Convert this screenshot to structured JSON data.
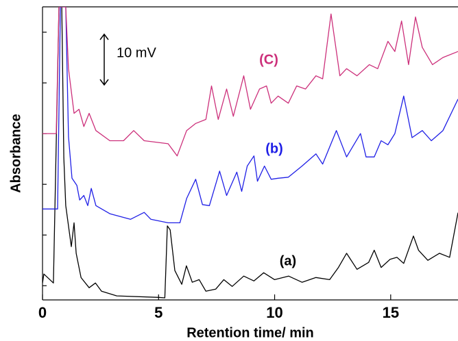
{
  "chart_data": {
    "type": "line",
    "x_label": "Retention time/ min",
    "y_label": "Absorbance",
    "annotation": "10 mV",
    "xlim": [
      0,
      17.9
    ],
    "ylim": [
      -1.4,
      27.5
    ],
    "xticks": [
      0,
      5,
      10,
      15
    ],
    "yticks": [
      0,
      5,
      10,
      15,
      20,
      25
    ],
    "series": [
      {
        "name": "(a)",
        "color": "#000000",
        "x": [
          0,
          0.06,
          0.47,
          0.71,
          0.83,
          0.92,
          1.0,
          1.12,
          1.24,
          1.36,
          1.45,
          1.66,
          2.01,
          2.28,
          2.54,
          3.2,
          5.0,
          5.27,
          5.38,
          5.5,
          5.7,
          6.0,
          6.2,
          6.45,
          6.75,
          7.04,
          7.46,
          7.81,
          8.17,
          8.67,
          9.11,
          9.53,
          10.0,
          10.6,
          11.18,
          11.78,
          12.37,
          12.75,
          13.1,
          13.55,
          14.05,
          14.29,
          14.59,
          14.97,
          15.27,
          15.56,
          15.98,
          16.2,
          16.6,
          17.1,
          17.54,
          17.9
        ],
        "values": [
          0.27,
          1.15,
          0.27,
          27.5,
          27.5,
          12.6,
          7.9,
          5.9,
          3.85,
          6.2,
          3.2,
          0.8,
          -0.2,
          0.27,
          -0.54,
          -1.0,
          -1.15,
          -1.2,
          5.9,
          5.5,
          1.5,
          0.14,
          1.96,
          0.34,
          0.6,
          -0.54,
          -0.34,
          0.6,
          -0.07,
          0.95,
          0.47,
          1.28,
          0.6,
          0.95,
          0.34,
          0.81,
          0.6,
          1.8,
          3.2,
          1.62,
          2.3,
          3.5,
          1.8,
          2.6,
          2.8,
          2.2,
          4.9,
          3.5,
          2.5,
          3.2,
          2.8,
          7.2
        ]
      },
      {
        "name": "(b)",
        "color": "#1f1fe6",
        "x": [
          0,
          0.65,
          0.77,
          1.0,
          1.12,
          1.27,
          1.48,
          1.6,
          1.78,
          1.95,
          2.1,
          2.3,
          2.9,
          3.79,
          4.38,
          4.67,
          5.41,
          5.92,
          6.21,
          6.6,
          6.89,
          7.19,
          7.63,
          7.93,
          8.37,
          8.58,
          8.82,
          9.11,
          9.26,
          9.56,
          9.85,
          10.15,
          10.59,
          11.18,
          11.78,
          12.07,
          12.66,
          13.1,
          13.7,
          13.94,
          14.29,
          14.59,
          14.88,
          15.18,
          15.56,
          15.92,
          16.36,
          16.75,
          17.25,
          17.9
        ],
        "values": [
          7.57,
          7.57,
          27.5,
          27.5,
          14.7,
          10.6,
          9.9,
          8.45,
          8.9,
          7.9,
          9.6,
          7.9,
          7.1,
          6.55,
          7.23,
          6.55,
          6.2,
          6.2,
          8.6,
          10.5,
          8.0,
          7.9,
          11.3,
          8.9,
          11.2,
          9.3,
          11.8,
          12.8,
          10.3,
          11.8,
          10.5,
          10.6,
          10.7,
          11.8,
          13.0,
          12.0,
          15.3,
          12.7,
          15.0,
          12.7,
          12.7,
          14.3,
          13.9,
          15.0,
          18.7,
          14.6,
          15.3,
          14.3,
          15.3,
          18.4
        ]
      },
      {
        "name": "(C)",
        "color": "#cc2f7a",
        "x": [
          0,
          0.59,
          0.71,
          1.0,
          1.12,
          1.36,
          1.57,
          1.78,
          2.01,
          2.3,
          2.9,
          3.49,
          3.93,
          4.38,
          5.41,
          5.8,
          6.21,
          6.6,
          7.04,
          7.28,
          7.57,
          7.93,
          8.22,
          8.67,
          8.96,
          9.35,
          9.65,
          9.85,
          10.15,
          10.59,
          10.95,
          11.33,
          11.78,
          12.07,
          12.43,
          12.81,
          13.1,
          13.55,
          14.08,
          14.44,
          14.88,
          15.18,
          15.47,
          15.77,
          16.07,
          16.36,
          16.8,
          17.25,
          17.9
        ],
        "values": [
          15.0,
          15.0,
          27.5,
          27.5,
          21.4,
          17.0,
          17.4,
          15.7,
          17.0,
          15.3,
          14.3,
          14.3,
          15.3,
          14.3,
          14.0,
          12.8,
          15.3,
          16.0,
          16.4,
          19.7,
          16.4,
          19.4,
          16.7,
          20.7,
          17.4,
          19.4,
          19.7,
          18.0,
          18.7,
          18.0,
          19.7,
          19.4,
          20.7,
          20.4,
          26.8,
          20.7,
          21.4,
          20.7,
          21.8,
          21.4,
          24.1,
          23.1,
          26.1,
          21.8,
          26.5,
          23.5,
          21.8,
          22.5,
          23.1
        ]
      }
    ]
  }
}
